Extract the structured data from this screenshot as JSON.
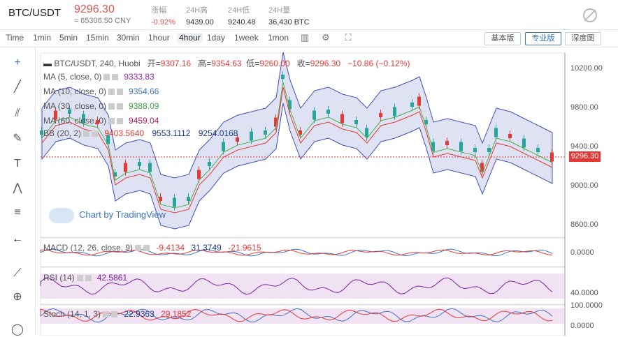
{
  "header": {
    "pair": "BTC/USDT",
    "price": "9296.30",
    "cny": "≈ 65306.50 CNY",
    "stats": [
      {
        "label": "涨幅",
        "value": "-0.92%"
      },
      {
        "label": "24H高",
        "value": "9439.00"
      },
      {
        "label": "24H低",
        "value": "9240.48"
      },
      {
        "label": "24H量",
        "value": "36,430 BTC"
      }
    ]
  },
  "toolbar": {
    "timeframes": [
      "Time",
      "1min",
      "5min",
      "15min",
      "30min",
      "1hour",
      "4hour",
      "1day",
      "1week",
      "1mon"
    ],
    "active": "4hour",
    "views": [
      "基本版",
      "专业版",
      "深度图"
    ],
    "active_view": "专业版"
  },
  "legend": {
    "symbol": "BTC/USDT, 240, Huobi",
    "open_label": "开=",
    "open": "9307.16",
    "high_label": "高=",
    "high": "9354.63",
    "low_label": "低=",
    "low": "9260.00",
    "close_label": "收=",
    "close": "9296.30",
    "change": "−10.86 (−0.12%)",
    "ma5_label": "MA (5, close, 0)",
    "ma5": "9333.83",
    "ma10_label": "MA (10, close, 0)",
    "ma10": "9354.66",
    "ma30_label": "MA (30, close, 0)",
    "ma30": "9388.09",
    "ma60_label": "MA (60, close, 0)",
    "ma60": "9459.04",
    "bb_label": "BB (20, 2)",
    "bb1": "9403.5640",
    "bb2": "9553.1112",
    "bb3": "9254.0168"
  },
  "macd": {
    "label": "MACD (12, 26, close, 9)",
    "v1": "-9.4134",
    "v2": "31.3749",
    "v3": "-21.9615"
  },
  "rsi": {
    "label": "RSI (14)",
    "v": "42.5861"
  },
  "stoch": {
    "label": "Stoch (14, 1, 3)",
    "v1": "22.9363",
    "v2": "29.1852"
  },
  "axis": {
    "price_ticks": [
      "10200.00",
      "9800.00",
      "9400.00",
      "9000.00",
      "8600.00"
    ],
    "current_price": "9296.30",
    "macd_tick": "0.0000",
    "rsi_tick": "40.0000",
    "stoch_ticks": [
      "100.0000",
      "0.0000"
    ]
  },
  "watermark": "Chart by TradingView",
  "colors": {
    "up": "#26a69a",
    "down": "#e53935",
    "band": "#c5cae9",
    "accent": "#3a75c4"
  }
}
